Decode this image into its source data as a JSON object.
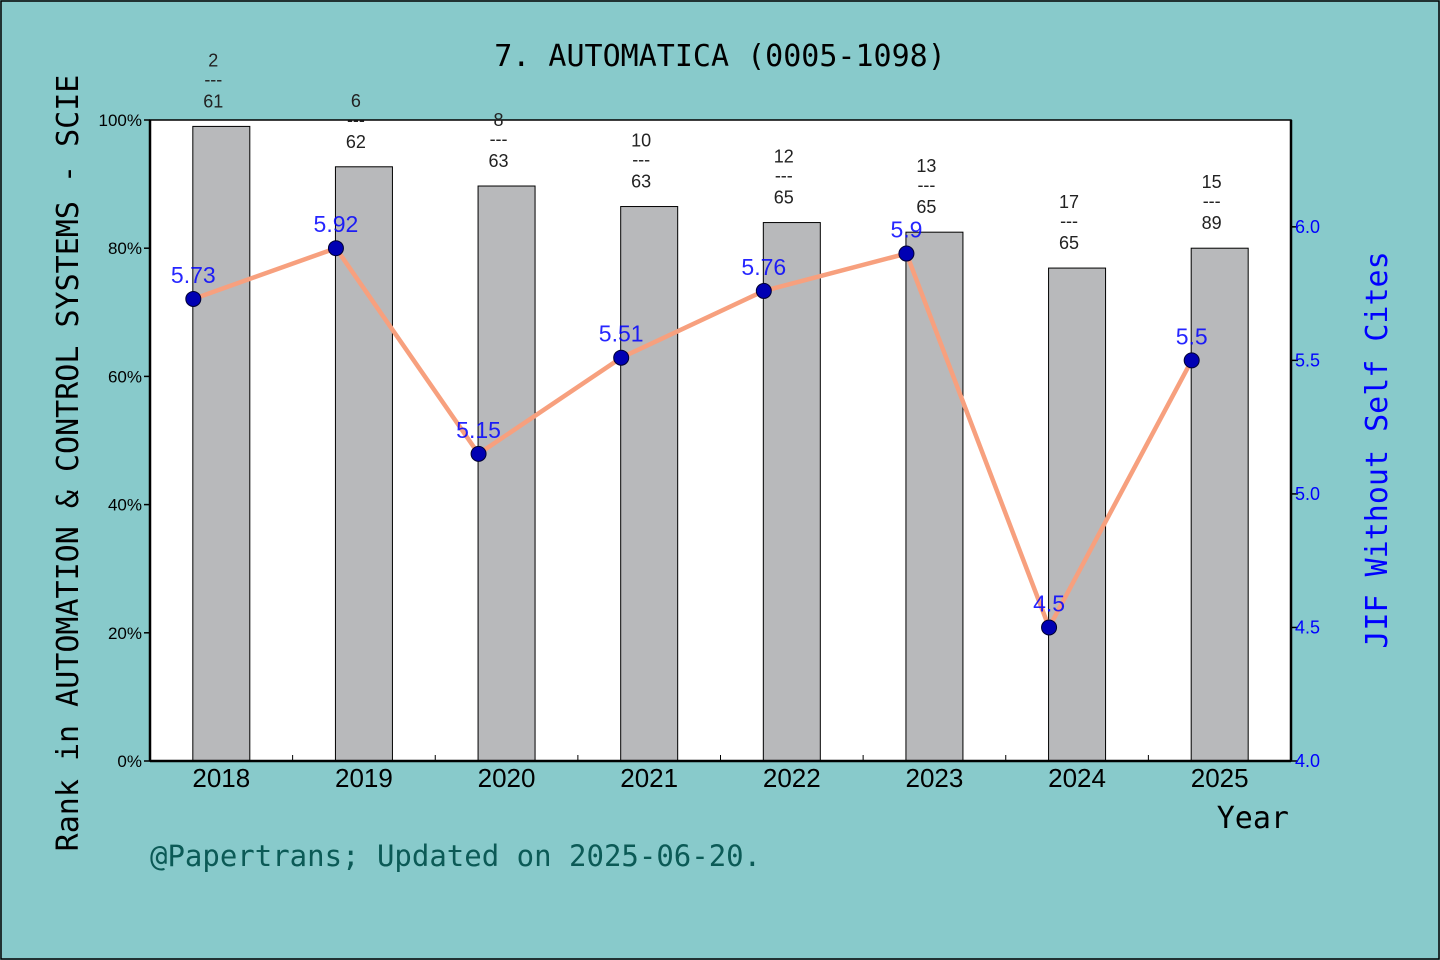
{
  "colors": {
    "background": "#88cacb",
    "plot_background": "#ffffff",
    "bar_fill": "#b8b9bb",
    "bar_stroke": "#000000",
    "line": "#f7a07e",
    "marker": "#0000b3",
    "right_axis": "#0000ff",
    "footer": "#0b5a56"
  },
  "footer": "@Papertrans; Updated on 2025-06-20.",
  "chart_data": {
    "type": "bar",
    "title": "7. AUTOMATICA (0005-1098)",
    "xlabel": "Year",
    "ylabel": "Rank in AUTOMATION & CONTROL SYSTEMS - SCIE",
    "y2label": "JIF Without Self Cites",
    "categories": [
      "2018",
      "2019",
      "2020",
      "2021",
      "2022",
      "2023",
      "2024",
      "2025"
    ],
    "ylim": [
      0,
      100
    ],
    "yticks": [
      0,
      20,
      40,
      60,
      80,
      100
    ],
    "ytick_labels": [
      "0%",
      "20%",
      "40%",
      "60%",
      "80%",
      "100%"
    ],
    "y2lim": [
      4.0,
      6.4
    ],
    "y2ticks": [
      4.0,
      4.5,
      5.0,
      5.5,
      6.0
    ],
    "y2tick_labels": [
      "4.0",
      "4.5",
      "5.0",
      "5.5",
      "6.0"
    ],
    "rank_separator": "---",
    "series": [
      {
        "type": "bar",
        "values": [
          99.0,
          92.7,
          89.7,
          86.5,
          84.0,
          82.5,
          76.9,
          80.0
        ],
        "rank": [
          "2",
          "6",
          "8",
          "10",
          "12",
          "13",
          "17",
          "15"
        ],
        "total": [
          "61",
          "62",
          "63",
          "63",
          "65",
          "65",
          "65",
          "89"
        ]
      },
      {
        "type": "line",
        "axis": "right",
        "values": [
          5.73,
          5.92,
          5.15,
          5.51,
          5.76,
          5.9,
          4.5,
          5.5
        ],
        "labels": [
          "5.73",
          "5.92",
          "5.15",
          "5.51",
          "5.76",
          "5.9",
          "4.5",
          "5.5"
        ]
      }
    ]
  }
}
